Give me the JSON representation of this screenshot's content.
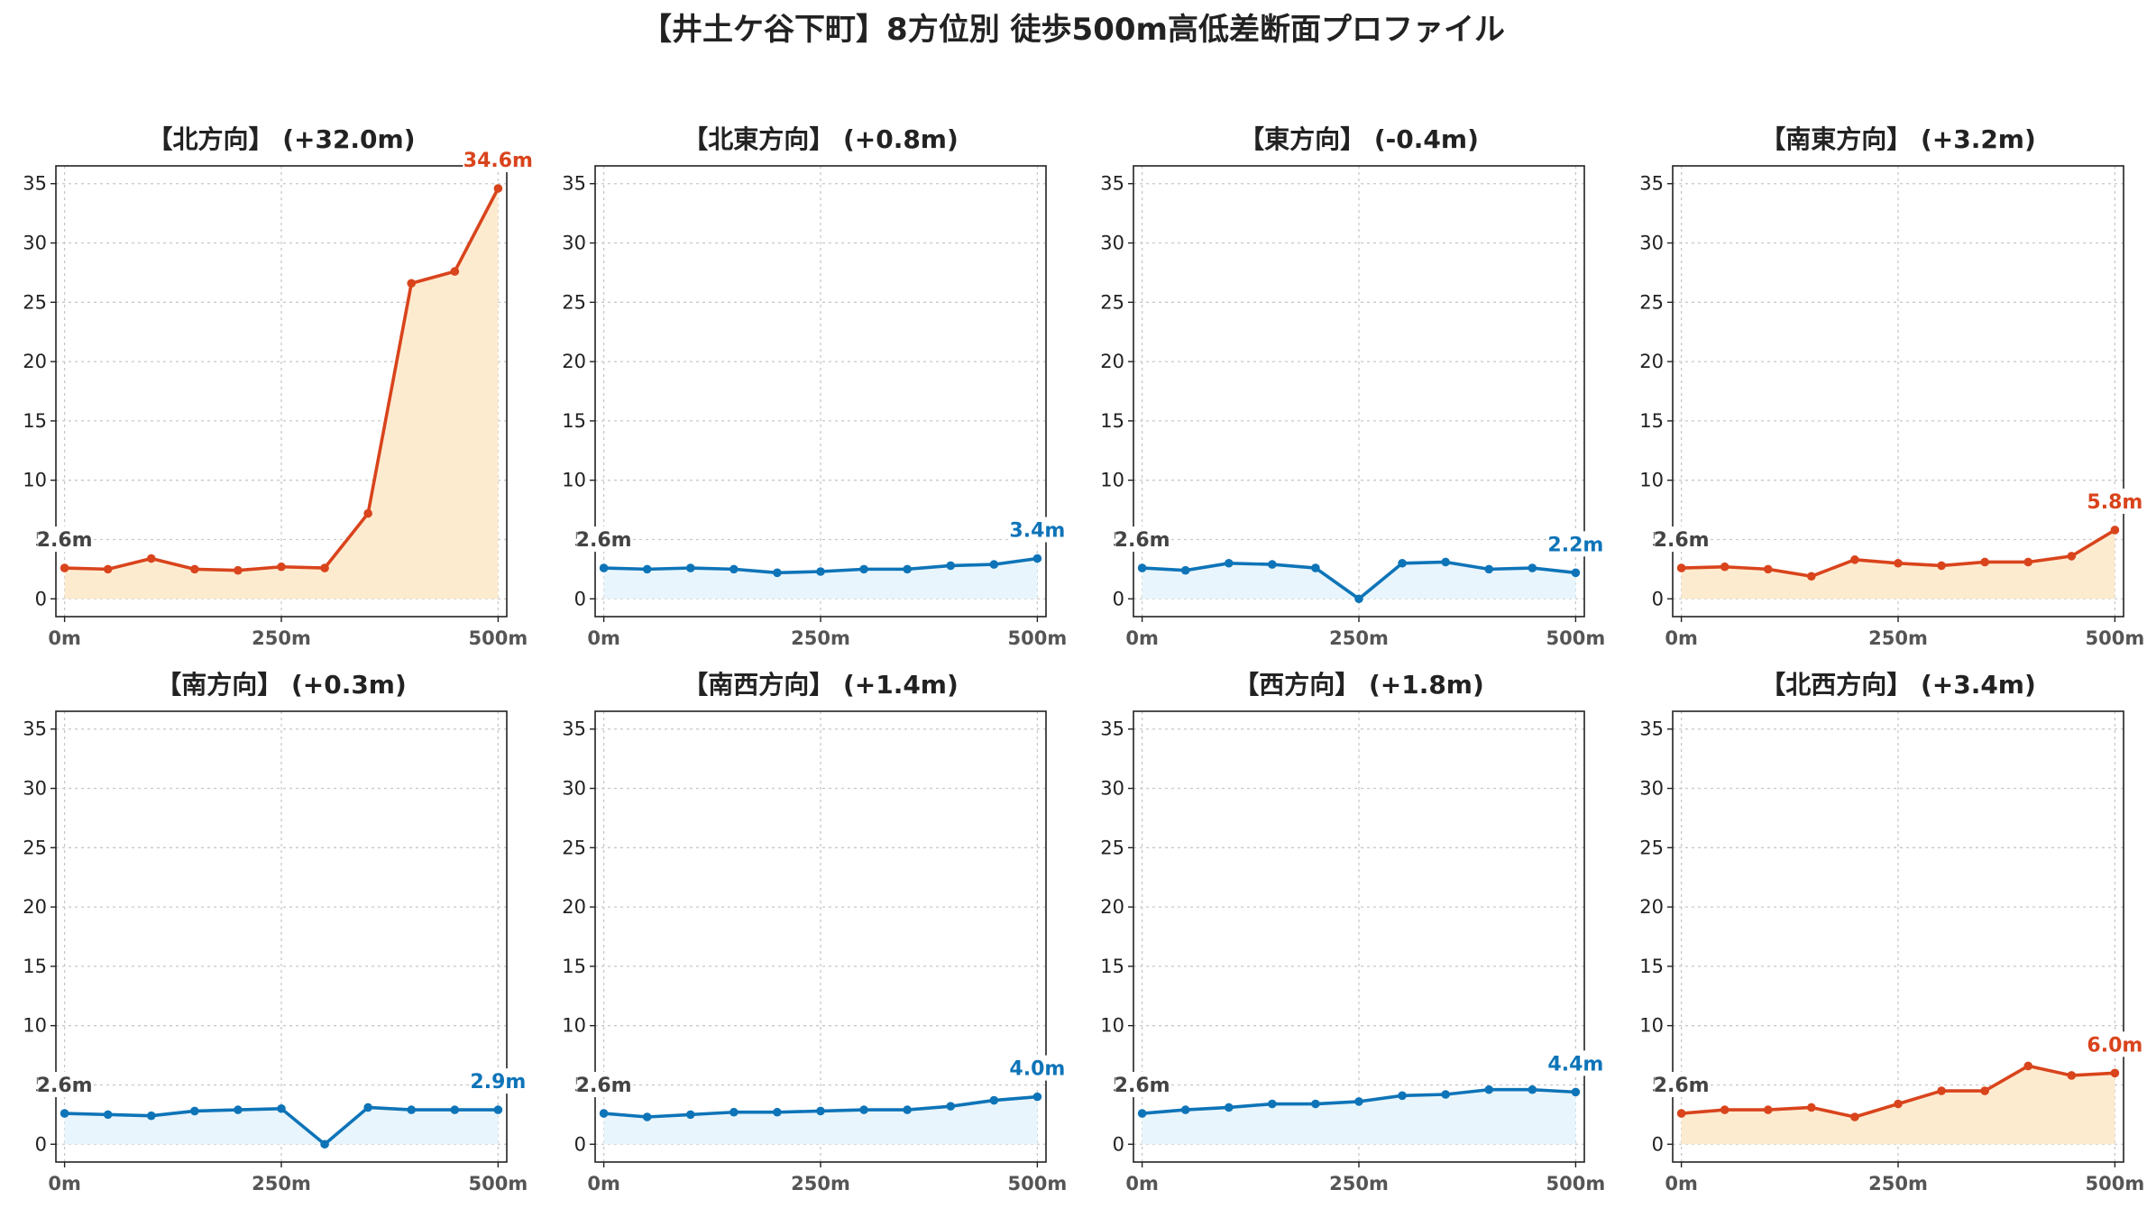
{
  "title": "【井土ケ谷下町】8方位別 徒歩500m高低差断面プロファイル",
  "colors": {
    "up_line": "#d9441c",
    "up_fill": "#fdebd0",
    "down_line": "#0e74b8",
    "down_fill": "#e8f5fc",
    "start_label": "#444444"
  },
  "chart_data": [
    {
      "type": "line",
      "title": "【北方向】 (+32.0m)",
      "x": [
        0,
        50,
        100,
        150,
        200,
        250,
        300,
        350,
        400,
        450,
        500
      ],
      "values": [
        2.6,
        2.5,
        3.4,
        2.5,
        2.4,
        2.7,
        2.6,
        7.2,
        26.6,
        27.6,
        34.6
      ],
      "ylim": [
        -1.5,
        36.5
      ],
      "yticks": [
        0,
        5,
        10,
        15,
        20,
        25,
        30,
        35
      ],
      "xticks": [
        "0m",
        "250m",
        "500m"
      ],
      "start_label": "2.6m",
      "end_label": "34.6m",
      "trend": "up",
      "grid": true
    },
    {
      "type": "line",
      "title": "【北東方向】 (+0.8m)",
      "x": [
        0,
        50,
        100,
        150,
        200,
        250,
        300,
        350,
        400,
        450,
        500
      ],
      "values": [
        2.6,
        2.5,
        2.6,
        2.5,
        2.2,
        2.3,
        2.5,
        2.5,
        2.8,
        2.9,
        3.4
      ],
      "ylim": [
        -1.5,
        36.5
      ],
      "yticks": [
        0,
        5,
        10,
        15,
        20,
        25,
        30,
        35
      ],
      "xticks": [
        "0m",
        "250m",
        "500m"
      ],
      "start_label": "2.6m",
      "end_label": "3.4m",
      "trend": "down",
      "grid": true
    },
    {
      "type": "line",
      "title": "【東方向】 (-0.4m)",
      "x": [
        0,
        50,
        100,
        150,
        200,
        250,
        300,
        350,
        400,
        450,
        500
      ],
      "values": [
        2.6,
        2.4,
        3.0,
        2.9,
        2.6,
        0.0,
        3.0,
        3.1,
        2.5,
        2.6,
        2.2
      ],
      "ylim": [
        -1.5,
        36.5
      ],
      "yticks": [
        0,
        5,
        10,
        15,
        20,
        25,
        30,
        35
      ],
      "xticks": [
        "0m",
        "250m",
        "500m"
      ],
      "start_label": "2.6m",
      "end_label": "2.2m",
      "trend": "down",
      "grid": true
    },
    {
      "type": "line",
      "title": "【南東方向】 (+3.2m)",
      "x": [
        0,
        50,
        100,
        150,
        200,
        250,
        300,
        350,
        400,
        450,
        500
      ],
      "values": [
        2.6,
        2.7,
        2.5,
        1.9,
        3.3,
        3.0,
        2.8,
        3.1,
        3.1,
        3.6,
        5.8
      ],
      "ylim": [
        -1.5,
        36.5
      ],
      "yticks": [
        0,
        5,
        10,
        15,
        20,
        25,
        30,
        35
      ],
      "xticks": [
        "0m",
        "250m",
        "500m"
      ],
      "start_label": "2.6m",
      "end_label": "5.8m",
      "trend": "up",
      "grid": true
    },
    {
      "type": "line",
      "title": "【南方向】 (+0.3m)",
      "x": [
        0,
        50,
        100,
        150,
        200,
        250,
        300,
        350,
        400,
        450,
        500
      ],
      "values": [
        2.6,
        2.5,
        2.4,
        2.8,
        2.9,
        3.0,
        0.0,
        3.1,
        2.9,
        2.9,
        2.9
      ],
      "ylim": [
        -1.5,
        36.5
      ],
      "yticks": [
        0,
        5,
        10,
        15,
        20,
        25,
        30,
        35
      ],
      "xticks": [
        "0m",
        "250m",
        "500m"
      ],
      "start_label": "2.6m",
      "end_label": "2.9m",
      "trend": "down",
      "grid": true
    },
    {
      "type": "line",
      "title": "【南西方向】 (+1.4m)",
      "x": [
        0,
        50,
        100,
        150,
        200,
        250,
        300,
        350,
        400,
        450,
        500
      ],
      "values": [
        2.6,
        2.3,
        2.5,
        2.7,
        2.7,
        2.8,
        2.9,
        2.9,
        3.2,
        3.7,
        4.0
      ],
      "ylim": [
        -1.5,
        36.5
      ],
      "yticks": [
        0,
        5,
        10,
        15,
        20,
        25,
        30,
        35
      ],
      "xticks": [
        "0m",
        "250m",
        "500m"
      ],
      "start_label": "2.6m",
      "end_label": "4.0m",
      "trend": "down",
      "grid": true
    },
    {
      "type": "line",
      "title": "【西方向】 (+1.8m)",
      "x": [
        0,
        50,
        100,
        150,
        200,
        250,
        300,
        350,
        400,
        450,
        500
      ],
      "values": [
        2.6,
        2.9,
        3.1,
        3.4,
        3.4,
        3.6,
        4.1,
        4.2,
        4.6,
        4.6,
        4.4
      ],
      "ylim": [
        -1.5,
        36.5
      ],
      "yticks": [
        0,
        5,
        10,
        15,
        20,
        25,
        30,
        35
      ],
      "xticks": [
        "0m",
        "250m",
        "500m"
      ],
      "start_label": "2.6m",
      "end_label": "4.4m",
      "trend": "down",
      "grid": true
    },
    {
      "type": "line",
      "title": "【北西方向】 (+3.4m)",
      "x": [
        0,
        50,
        100,
        150,
        200,
        250,
        300,
        350,
        400,
        450,
        500
      ],
      "values": [
        2.6,
        2.9,
        2.9,
        3.1,
        2.3,
        3.4,
        4.5,
        4.5,
        6.6,
        5.8,
        6.0
      ],
      "ylim": [
        -1.5,
        36.5
      ],
      "yticks": [
        0,
        5,
        10,
        15,
        20,
        25,
        30,
        35
      ],
      "xticks": [
        "0m",
        "250m",
        "500m"
      ],
      "start_label": "2.6m",
      "end_label": "6.0m",
      "trend": "up",
      "grid": true
    }
  ]
}
